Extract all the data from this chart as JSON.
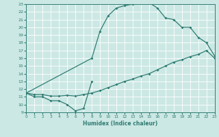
{
  "xlabel": "Humidex (Indice chaleur)",
  "xlim": [
    0,
    23
  ],
  "ylim": [
    9,
    23
  ],
  "xticks": [
    0,
    1,
    2,
    3,
    4,
    5,
    6,
    7,
    8,
    9,
    10,
    11,
    12,
    13,
    14,
    15,
    16,
    17,
    18,
    19,
    20,
    21,
    22,
    23
  ],
  "yticks": [
    9,
    10,
    11,
    12,
    13,
    14,
    15,
    16,
    17,
    18,
    19,
    20,
    21,
    22,
    23
  ],
  "background_color": "#cce8e4",
  "line_color": "#2e7b72",
  "grid_color": "#b0d8d2",
  "curve1_x": [
    0,
    1,
    2,
    3,
    4,
    5,
    6,
    7,
    8
  ],
  "curve1_y": [
    11.5,
    11.0,
    11.0,
    10.5,
    10.5,
    10.0,
    9.2,
    9.5,
    13.0
  ],
  "curve2_x": [
    0,
    1,
    2,
    3,
    4,
    5,
    6,
    7,
    8,
    9,
    10,
    11,
    12,
    13,
    14,
    15,
    16,
    17,
    18,
    19,
    20,
    21,
    22,
    23
  ],
  "curve2_y": [
    11.5,
    11.3,
    11.3,
    11.1,
    11.1,
    11.2,
    11.1,
    11.3,
    11.5,
    11.8,
    12.2,
    12.6,
    13.0,
    13.3,
    13.7,
    14.0,
    14.5,
    15.0,
    15.5,
    15.8,
    16.2,
    16.5,
    17.0,
    16.0
  ],
  "curve3_x": [
    0,
    8,
    9,
    10,
    11,
    12,
    13,
    14,
    15,
    16,
    17,
    18,
    19,
    20,
    21,
    22,
    23
  ],
  "curve3_y": [
    11.5,
    16.0,
    19.5,
    21.5,
    22.5,
    22.8,
    23.0,
    23.2,
    23.2,
    22.5,
    21.2,
    21.0,
    20.0,
    20.0,
    18.7,
    18.0,
    16.3
  ],
  "line_width": 0.9,
  "marker": "D",
  "marker_size": 2.0
}
